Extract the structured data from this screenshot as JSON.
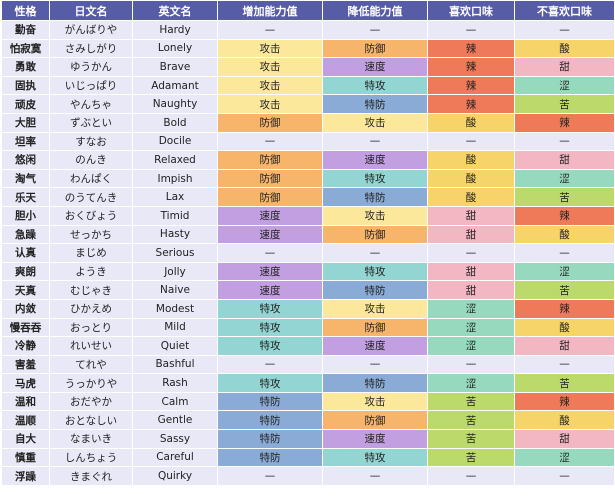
{
  "table": {
    "headers": [
      "性格",
      "日文名",
      "英文名",
      "增加能力值",
      "降低能力值",
      "喜欢口味",
      "不喜欢口味"
    ],
    "rows": [
      [
        "勤奋",
        "がんばりや",
        "Hardy",
        "—",
        "—",
        "—",
        "—"
      ],
      [
        "怕寂寞",
        "さみしがり",
        "Lonely",
        "攻击",
        "防御",
        "辣",
        "酸"
      ],
      [
        "勇敢",
        "ゆうかん",
        "Brave",
        "攻击",
        "速度",
        "辣",
        "甜"
      ],
      [
        "固执",
        "いじっぱり",
        "Adamant",
        "攻击",
        "特攻",
        "辣",
        "涩"
      ],
      [
        "顽皮",
        "やんちゃ",
        "Naughty",
        "攻击",
        "特防",
        "辣",
        "苦"
      ],
      [
        "大胆",
        "ずぶとい",
        "Bold",
        "防御",
        "攻击",
        "酸",
        "辣"
      ],
      [
        "坦率",
        "すなお",
        "Docile",
        "—",
        "—",
        "—",
        "—"
      ],
      [
        "悠闲",
        "のんき",
        "Relaxed",
        "防御",
        "速度",
        "酸",
        "甜"
      ],
      [
        "淘气",
        "わんぱく",
        "Impish",
        "防御",
        "特攻",
        "酸",
        "涩"
      ],
      [
        "乐天",
        "のうてんき",
        "Lax",
        "防御",
        "特防",
        "酸",
        "苦"
      ],
      [
        "胆小",
        "おくびょう",
        "Timid",
        "速度",
        "攻击",
        "甜",
        "辣"
      ],
      [
        "急躁",
        "せっかち",
        "Hasty",
        "速度",
        "防御",
        "甜",
        "酸"
      ],
      [
        "认真",
        "まじめ",
        "Serious",
        "—",
        "—",
        "—",
        "—"
      ],
      [
        "爽朗",
        "ようき",
        "Jolly",
        "速度",
        "特攻",
        "甜",
        "涩"
      ],
      [
        "天真",
        "むじゃき",
        "Naive",
        "速度",
        "特防",
        "甜",
        "苦"
      ],
      [
        "内敛",
        "ひかえめ",
        "Modest",
        "特攻",
        "攻击",
        "涩",
        "辣"
      ],
      [
        "慢吞吞",
        "おっとり",
        "Mild",
        "特攻",
        "防御",
        "涩",
        "酸"
      ],
      [
        "冷静",
        "れいせい",
        "Quiet",
        "特攻",
        "速度",
        "涩",
        "甜"
      ],
      [
        "害羞",
        "てれや",
        "Bashful",
        "—",
        "—",
        "—",
        "—"
      ],
      [
        "马虎",
        "うっかりや",
        "Rash",
        "特攻",
        "特防",
        "涩",
        "苦"
      ],
      [
        "温和",
        "おだやか",
        "Calm",
        "特防",
        "攻击",
        "苦",
        "辣"
      ],
      [
        "温顺",
        "おとなしい",
        "Gentle",
        "特防",
        "防御",
        "苦",
        "酸"
      ],
      [
        "自大",
        "なまいき",
        "Sassy",
        "特防",
        "速度",
        "苦",
        "甜"
      ],
      [
        "慎重",
        "しんちょう",
        "Careful",
        "特防",
        "特攻",
        "苦",
        "涩"
      ],
      [
        "浮躁",
        "きまぐれ",
        "Quirky",
        "—",
        "—",
        "—",
        "—"
      ]
    ],
    "cell_colors": {
      "攻击": "#fbe89a",
      "防御": "#f7b56c",
      "速度": "#c29fe0",
      "特攻": "#92d5d2",
      "特防": "#8aabd6",
      "辣": "#ef7a5a",
      "酸": "#f7d46a",
      "甜": "#f3b7c4",
      "涩": "#96d9bf",
      "苦": "#bcd96c"
    }
  }
}
